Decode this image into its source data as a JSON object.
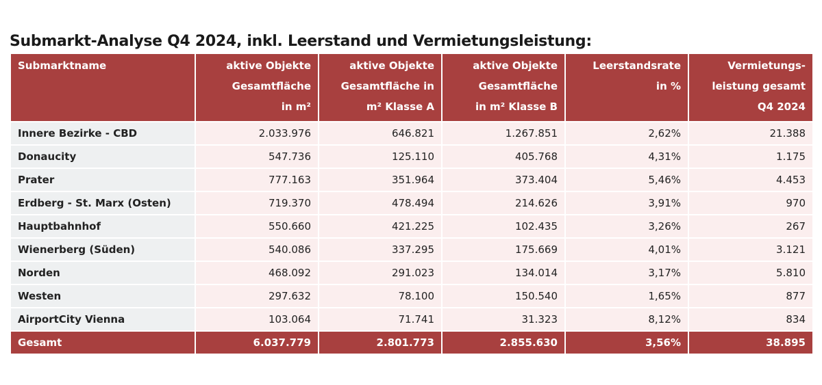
{
  "title": "Submarkt-Analyse Q4 2024, inkl. Leerstand und Vermietungsleistung:",
  "table": {
    "header": [
      [
        "Submarktname"
      ],
      [
        "aktive Objekte",
        "Gesamtfläche",
        "in m²"
      ],
      [
        "aktive Objekte",
        "Gesamtfläche in",
        "m² Klasse A"
      ],
      [
        "aktive Objekte",
        "Gesamtfläche",
        "in m² Klasse B"
      ],
      [
        "Leerstandsrate",
        "in %"
      ],
      [
        "Vermietungs-",
        "leistung gesamt",
        "Q4 2024"
      ]
    ],
    "rows": [
      [
        "Innere Bezirke - CBD",
        "2.033.976",
        "646.821",
        "1.267.851",
        "2,62%",
        "21.388"
      ],
      [
        "Donaucity",
        "547.736",
        "125.110",
        "405.768",
        "4,31%",
        "1.175"
      ],
      [
        "Prater",
        "777.163",
        "351.964",
        "373.404",
        "5,46%",
        "4.453"
      ],
      [
        "Erdberg - St. Marx (Osten)",
        "719.370",
        "478.494",
        "214.626",
        "3,91%",
        "970"
      ],
      [
        "Hauptbahnhof",
        "550.660",
        "421.225",
        "102.435",
        "3,26%",
        "267"
      ],
      [
        "Wienerberg (Süden)",
        "540.086",
        "337.295",
        "175.669",
        "4,01%",
        "3.121"
      ],
      [
        "Norden",
        "468.092",
        "291.023",
        "134.014",
        "3,17%",
        "5.810"
      ],
      [
        "Westen",
        "297.632",
        "78.100",
        "150.540",
        "1,65%",
        "877"
      ],
      [
        "AirportCity Vienna",
        "103.064",
        "71.741",
        "31.323",
        "8,12%",
        "834"
      ]
    ],
    "total": [
      "Gesamt",
      "6.037.779",
      "2.801.773",
      "2.855.630",
      "3,56%",
      "38.895"
    ]
  }
}
